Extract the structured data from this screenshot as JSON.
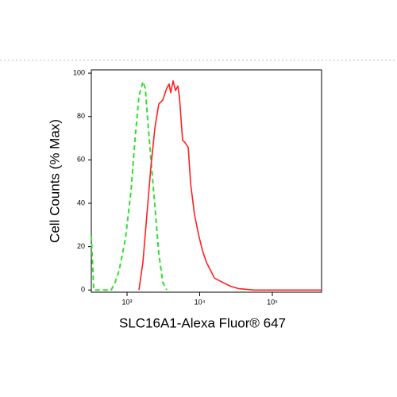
{
  "chart_data": {
    "type": "line",
    "xlabel": "SLC16A1-Alexa Fluor® 647",
    "ylabel": "Cell Counts (% Max)",
    "xscale": "log",
    "xlim": [
      322,
      476000
    ],
    "ylim": [
      -1,
      101.5
    ],
    "xticks": [
      {
        "value": 1000,
        "label": "10³"
      },
      {
        "value": 10000,
        "label": "10⁴"
      },
      {
        "value": 100000,
        "label": "10⁵"
      }
    ],
    "yticks": [
      0,
      20,
      40,
      60,
      80,
      100
    ],
    "series": [
      {
        "color": "#33dd33",
        "dashed": true,
        "x": [
          322,
          348,
          604,
          685,
          778,
          950,
          1134,
          1286,
          1459,
          1655,
          1784,
          1923,
          2127,
          2415,
          2737,
          3105,
          3518
        ],
        "values": [
          25,
          0,
          0,
          3.6,
          9.1,
          23.7,
          45.6,
          69.3,
          89.4,
          96,
          93,
          78.8,
          60.6,
          38.7,
          16.8,
          3.6,
          0
        ]
      },
      {
        "color": "#ff2020",
        "dashed": false,
        "x": [
          1459,
          1655,
          1876,
          2127,
          2415,
          2737,
          3105,
          3518,
          3795,
          3990,
          4305,
          4643,
          5000,
          5260,
          5820,
          6280,
          6950,
          7480,
          8490,
          9640,
          10920,
          12390,
          14060,
          15920,
          20470,
          26340,
          33880,
          56100,
          476000
        ],
        "values": [
          0,
          12.8,
          34.7,
          56.6,
          74.8,
          85.8,
          87.6,
          93,
          95,
          91,
          96.4,
          92,
          94,
          89,
          69,
          68,
          65.7,
          49.3,
          34.7,
          25.5,
          18.2,
          12.8,
          9.1,
          5.5,
          3.6,
          1.8,
          0.7,
          0,
          0
        ]
      }
    ]
  }
}
